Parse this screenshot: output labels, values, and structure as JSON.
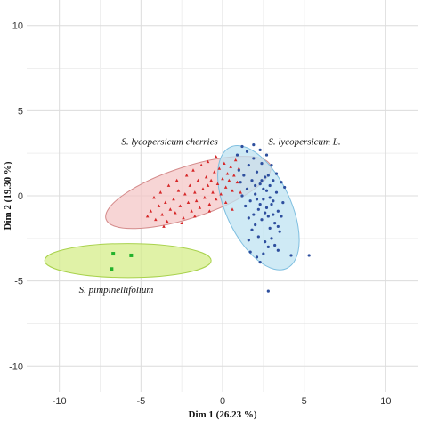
{
  "chart_data": {
    "type": "scatter",
    "xlabel": "Dim 1 (26.23 %)",
    "ylabel": "Dim 2 (19.30 %)",
    "xlim": [
      -12,
      12
    ],
    "ylim": [
      -11.5,
      11.5
    ],
    "x_ticks": [
      -10,
      -5,
      0,
      5,
      10
    ],
    "y_ticks": [
      -10,
      -5,
      0,
      5,
      10
    ],
    "x_tick_labels": [
      "-10",
      "-5",
      "0",
      "5",
      "10"
    ],
    "y_tick_labels": [
      "-10",
      "-5",
      "0",
      "5",
      "10"
    ],
    "grid": true,
    "series": [
      {
        "name": "S. lycopersicum cherries",
        "color": "#d62728",
        "marker": "triangle",
        "ellipse": {
          "cx": -2.1,
          "cy": 0.2,
          "rx": 5.3,
          "ry": 1.5,
          "angle_deg": 18,
          "fill": "#f4c7c7",
          "stroke": "#d48a8a"
        },
        "points": [
          [
            -4.6,
            -1.2
          ],
          [
            -4.4,
            -0.9
          ],
          [
            -4.1,
            -1.4
          ],
          [
            -3.9,
            -0.6
          ],
          [
            -3.7,
            -1.1
          ],
          [
            -3.5,
            -0.4
          ],
          [
            -3.4,
            -1.5
          ],
          [
            -3.2,
            -0.8
          ],
          [
            -3.0,
            -0.2
          ],
          [
            -2.9,
            -1.0
          ],
          [
            -2.7,
            0.3
          ],
          [
            -2.6,
            -0.6
          ],
          [
            -2.4,
            -1.3
          ],
          [
            -2.3,
            0.1
          ],
          [
            -2.1,
            -0.4
          ],
          [
            -2.0,
            0.6
          ],
          [
            -1.9,
            -0.9
          ],
          [
            -1.7,
            0.2
          ],
          [
            -1.6,
            -0.3
          ],
          [
            -1.5,
            0.9
          ],
          [
            -1.4,
            -0.7
          ],
          [
            -1.2,
            0.4
          ],
          [
            -1.1,
            -0.1
          ],
          [
            -1.0,
            1.1
          ],
          [
            -0.9,
            0.6
          ],
          [
            -0.8,
            -0.5
          ],
          [
            -0.7,
            0.9
          ],
          [
            -0.6,
            0.2
          ],
          [
            -0.5,
            1.4
          ],
          [
            -0.4,
            -0.2
          ],
          [
            -0.3,
            0.7
          ],
          [
            -0.2,
            1.6
          ],
          [
            -0.1,
            0.1
          ],
          [
            0.0,
            1.0
          ],
          [
            0.1,
            1.9
          ],
          [
            0.2,
            0.5
          ],
          [
            0.3,
            1.3
          ],
          [
            0.4,
            0.9
          ],
          [
            0.5,
            1.7
          ],
          [
            0.6,
            0.3
          ],
          [
            0.7,
            1.2
          ],
          [
            0.8,
            2.1
          ],
          [
            0.9,
            0.8
          ],
          [
            1.0,
            1.6
          ],
          [
            -3.8,
            0.2
          ],
          [
            -3.3,
            0.6
          ],
          [
            -2.8,
            0.9
          ],
          [
            -2.2,
            1.2
          ],
          [
            -1.8,
            1.5
          ],
          [
            -1.3,
            1.8
          ],
          [
            -0.9,
            2.0
          ],
          [
            -0.4,
            2.3
          ],
          [
            -4.2,
            -0.1
          ],
          [
            -3.6,
            -1.8
          ],
          [
            -2.5,
            -1.6
          ],
          [
            -1.7,
            -1.2
          ],
          [
            -0.8,
            -0.9
          ],
          [
            0.2,
            -0.4
          ],
          [
            0.6,
            -0.8
          ],
          [
            1.1,
            0.2
          ]
        ]
      },
      {
        "name": "S. lycopersicum L.",
        "color": "#2e4f9e",
        "marker": "circle",
        "ellipse": {
          "cx": 2.2,
          "cy": -0.7,
          "rx": 4.1,
          "ry": 1.9,
          "angle_deg": -65,
          "fill": "#bfe3f2",
          "stroke": "#7fbfe0"
        },
        "points": [
          [
            1.3,
            1.2
          ],
          [
            1.5,
            0.4
          ],
          [
            1.6,
            1.8
          ],
          [
            1.7,
            -0.3
          ],
          [
            1.8,
            0.9
          ],
          [
            1.9,
            2.2
          ],
          [
            2.0,
            0.1
          ],
          [
            2.1,
            1.4
          ],
          [
            2.2,
            -0.8
          ],
          [
            2.3,
            0.7
          ],
          [
            2.4,
            1.9
          ],
          [
            2.5,
            -0.2
          ],
          [
            2.6,
            1.1
          ],
          [
            2.7,
            0.3
          ],
          [
            2.8,
            -1.2
          ],
          [
            2.9,
            0.6
          ],
          [
            3.0,
            -0.5
          ],
          [
            3.1,
            0.9
          ],
          [
            3.2,
            -1.6
          ],
          [
            3.3,
            0.2
          ],
          [
            3.4,
            -0.9
          ],
          [
            3.5,
            -2.1
          ],
          [
            1.4,
            -0.6
          ],
          [
            1.6,
            -1.3
          ],
          [
            1.8,
            -2.0
          ],
          [
            2.0,
            -1.7
          ],
          [
            2.2,
            -2.4
          ],
          [
            2.4,
            -1.4
          ],
          [
            2.6,
            -2.7
          ],
          [
            2.8,
            -3.0
          ],
          [
            3.0,
            -2.5
          ],
          [
            3.2,
            -2.9
          ],
          [
            3.4,
            -1.8
          ],
          [
            3.6,
            -1.2
          ],
          [
            3.7,
            -0.4
          ],
          [
            3.8,
            0.5
          ],
          [
            1.2,
            0.0
          ],
          [
            1.1,
            0.8
          ],
          [
            1.0,
            1.5
          ],
          [
            0.9,
            2.4
          ],
          [
            1.2,
            2.9
          ],
          [
            1.5,
            2.6
          ],
          [
            1.9,
            3.0
          ],
          [
            2.3,
            2.7
          ],
          [
            2.7,
            2.4
          ],
          [
            3.0,
            1.8
          ],
          [
            3.3,
            1.3
          ],
          [
            3.6,
            0.8
          ],
          [
            2.1,
            -0.2
          ],
          [
            2.3,
            -0.5
          ],
          [
            2.5,
            0.4
          ],
          [
            2.7,
            -0.7
          ],
          [
            2.9,
            -0.1
          ],
          [
            3.1,
            -0.3
          ],
          [
            2.0,
            0.6
          ],
          [
            2.4,
            0.9
          ],
          [
            2.8,
            1.2
          ],
          [
            1.7,
            -3.3
          ],
          [
            2.1,
            -3.6
          ],
          [
            2.5,
            -3.4
          ],
          [
            3.4,
            -3.2
          ],
          [
            1.6,
            -2.6
          ],
          [
            2.9,
            -1.9
          ],
          [
            3.1,
            -1.1
          ],
          [
            1.9,
            -1.1
          ],
          [
            2.6,
            -1.0
          ],
          [
            4.2,
            -3.5
          ],
          [
            5.3,
            -3.5
          ],
          [
            2.8,
            -5.6
          ],
          [
            2.3,
            -3.9
          ]
        ]
      },
      {
        "name": "S. pimpinellifolium",
        "color": "#22b22b",
        "marker": "square",
        "ellipse": {
          "cx": -5.8,
          "cy": -3.8,
          "rx": 5.1,
          "ry": 1.0,
          "angle_deg": 0,
          "fill": "#d6ee8a",
          "stroke": "#a9d24d"
        },
        "points": [
          [
            -6.7,
            -3.4
          ],
          [
            -5.6,
            -3.5
          ],
          [
            -6.8,
            -4.3
          ]
        ]
      }
    ],
    "annotations": [
      {
        "text": "S. lycopersicum cherries",
        "x": -6.2,
        "y": 3.0
      },
      {
        "text": "S. lycopersicum L.",
        "x": 2.8,
        "y": 3.0
      },
      {
        "text": "S. pimpinellifolium",
        "x": -8.8,
        "y": -5.7
      }
    ]
  }
}
